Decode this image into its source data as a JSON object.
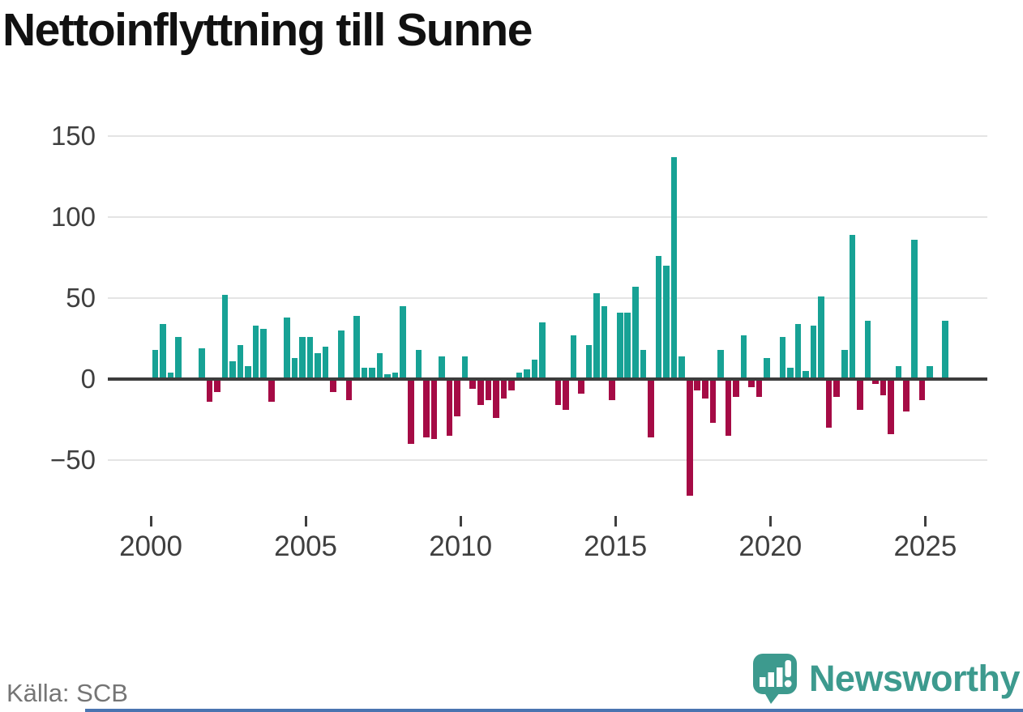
{
  "title": "Nettoinflyttning till Sunne",
  "source": "Källa: SCB",
  "brand": {
    "name": "Newsworthy"
  },
  "colors": {
    "positive": "#17a295",
    "negative": "#a50b45",
    "grid": "#e4e4e4",
    "zero_line": "#3c3c3c",
    "axis_text": "#3f3f3f",
    "title": "#111111",
    "source_text": "#757575",
    "brand_teal": "#3d9a8e",
    "bottom_line": "#4a74b0"
  },
  "chart_data": {
    "type": "bar",
    "title": "Nettoinflyttning till Sunne",
    "frequency": "quarterly",
    "start": "2000-Q1",
    "end": "2025-Q3",
    "values": [
      18,
      34,
      4,
      26,
      0,
      0,
      19,
      -14,
      -8,
      52,
      11,
      21,
      8,
      33,
      31,
      -14,
      0,
      38,
      13,
      26,
      26,
      16,
      20,
      -8,
      30,
      -13,
      39,
      7,
      7,
      16,
      3,
      4,
      45,
      -40,
      18,
      -36,
      -37,
      14,
      -35,
      -23,
      14,
      -6,
      -16,
      -13,
      -24,
      -12,
      -7,
      4,
      6,
      12,
      35,
      0,
      -16,
      -19,
      27,
      -9,
      21,
      53,
      45,
      -13,
      41,
      41,
      57,
      18,
      -36,
      76,
      70,
      137,
      14,
      -72,
      -7,
      -12,
      -27,
      18,
      -35,
      -11,
      27,
      -5,
      -11,
      13,
      0,
      26,
      7,
      34,
      5,
      33,
      51,
      -30,
      -11,
      18,
      89,
      -19,
      36,
      -3,
      -10,
      -34,
      8,
      -20,
      86,
      -13,
      8,
      0,
      36
    ],
    "x_tick_years": [
      "2000",
      "2005",
      "2010",
      "2015",
      "2020",
      "2025"
    ],
    "y_ticks": [
      {
        "value": 150,
        "label": "150"
      },
      {
        "value": 100,
        "label": "100"
      },
      {
        "value": 50,
        "label": "50"
      },
      {
        "value": 0,
        "label": "0"
      },
      {
        "value": -50,
        "label": "−50"
      }
    ],
    "ylim": [
      -80,
      158
    ],
    "grid": true,
    "legend": "none",
    "xlabel": "",
    "ylabel": ""
  }
}
